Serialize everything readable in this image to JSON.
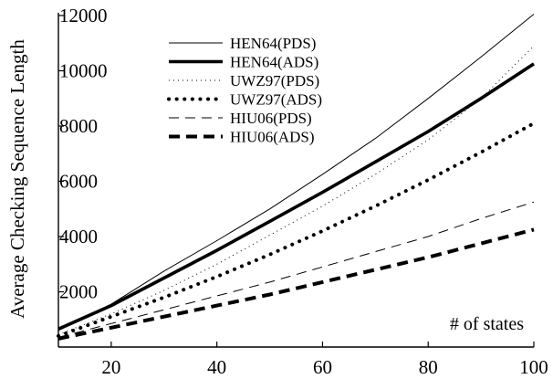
{
  "chart_data": {
    "type": "line",
    "title": "",
    "xlabel": "",
    "ylabel": "Average Checking Sequence Length",
    "annotation": "# of states",
    "xlim": [
      10,
      100
    ],
    "ylim": [
      0,
      12000
    ],
    "xticks": [
      20,
      40,
      60,
      80,
      100
    ],
    "yticks": [
      2000,
      4000,
      6000,
      8000,
      10000,
      12000
    ],
    "xtick_labels": [
      "20",
      "40",
      "60",
      "80",
      "100"
    ],
    "ytick_labels": [
      "2000",
      "4000",
      "6000",
      "8000",
      "10000",
      "12000"
    ],
    "grid": false,
    "legend_position": "top-left",
    "x": [
      10,
      20,
      30,
      40,
      50,
      60,
      70,
      80,
      90,
      100
    ],
    "series": [
      {
        "name": "HEN64(PDS)",
        "style": "thin-solid",
        "color": "#000000",
        "values": [
          650,
          1550,
          2750,
          3850,
          5000,
          6250,
          7550,
          9000,
          10500,
          12050
        ]
      },
      {
        "name": "HEN64(ADS)",
        "style": "thick-solid",
        "color": "#000000",
        "values": [
          650,
          1500,
          2500,
          3500,
          4550,
          5600,
          6700,
          7800,
          9000,
          10250
        ]
      },
      {
        "name": "UWZ97(PDS)",
        "style": "thin-dotted",
        "color": "#000000",
        "values": [
          450,
          1200,
          2050,
          3000,
          4050,
          5100,
          6250,
          7500,
          9000,
          10900
        ]
      },
      {
        "name": "UWZ97(ADS)",
        "style": "thick-dotted",
        "color": "#000000",
        "values": [
          400,
          1100,
          1800,
          2550,
          3350,
          4200,
          5100,
          6050,
          7050,
          8100
        ]
      },
      {
        "name": "HIU06(PDS)",
        "style": "thin-dashed",
        "color": "#000000",
        "values": [
          350,
          850,
          1350,
          1850,
          2350,
          2900,
          3450,
          4000,
          4650,
          5250
        ]
      },
      {
        "name": "HIU06(ADS)",
        "style": "thick-dashed",
        "color": "#000000",
        "values": [
          300,
          700,
          1100,
          1500,
          1900,
          2350,
          2800,
          3250,
          3750,
          4250
        ]
      }
    ]
  }
}
